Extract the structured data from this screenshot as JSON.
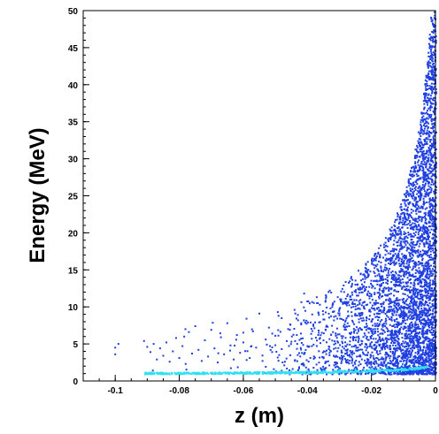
{
  "chart_data": {
    "type": "scatter",
    "xlabel": "z (m)",
    "ylabel": "Energy (MeV)",
    "xlim": [
      -0.11,
      0.0
    ],
    "ylim": [
      0,
      50
    ],
    "x_ticks": [
      -0.1,
      -0.08,
      -0.06,
      -0.04,
      -0.02,
      0
    ],
    "x_tick_labels": [
      "-0.1",
      "-0.08",
      "-0.06",
      "-0.04",
      "-0.02",
      "0"
    ],
    "y_ticks": [
      0,
      5,
      10,
      15,
      20,
      25,
      30,
      35,
      40,
      45,
      50
    ],
    "y_tick_labels": [
      "0",
      "5",
      "10",
      "15",
      "20",
      "25",
      "30",
      "35",
      "40",
      "45",
      "50"
    ],
    "grid": false,
    "legend": "none",
    "series": [
      {
        "color": "#1f3fe0",
        "points": [
          [
            -0.1,
            4.5
          ],
          [
            -0.1,
            3.6
          ],
          [
            -0.099,
            5.0
          ],
          [
            -0.091,
            5.4
          ],
          [
            -0.09,
            4.6
          ],
          [
            -0.089,
            3.9
          ],
          [
            -0.088,
            5.0
          ],
          [
            -0.087,
            2.9
          ],
          [
            -0.086,
            4.4
          ],
          [
            -0.085,
            3.4
          ],
          [
            -0.084,
            5.2
          ],
          [
            -0.083,
            2.6
          ],
          [
            -0.082,
            4.0
          ],
          [
            -0.081,
            5.8
          ],
          [
            -0.08,
            3.1
          ],
          [
            -0.079,
            4.7
          ],
          [
            -0.078,
            2.3
          ],
          [
            -0.077,
            6.6
          ],
          [
            -0.076,
            3.7
          ],
          [
            -0.075,
            7.4
          ],
          [
            -0.074,
            4.2
          ],
          [
            -0.073,
            2.7
          ],
          [
            -0.072,
            5.5
          ],
          [
            -0.071,
            3.3
          ],
          [
            -0.07,
            6.9
          ],
          [
            -0.069,
            4.4
          ],
          [
            -0.068,
            2.5
          ],
          [
            -0.067,
            5.9
          ],
          [
            -0.066,
            3.6
          ],
          [
            -0.065,
            7.8
          ],
          [
            -0.064,
            4.8
          ],
          [
            -0.063,
            2.9
          ],
          [
            -0.062,
            6.2
          ],
          [
            -0.061,
            3.8
          ],
          [
            -0.06,
            5.2
          ],
          [
            -0.059,
            8.4
          ],
          [
            -0.058,
            3.1
          ],
          [
            -0.057,
            6.7
          ],
          [
            -0.056,
            4.5
          ],
          [
            -0.055,
            9.1
          ],
          [
            -0.054,
            2.7
          ],
          [
            -0.053,
            5.6
          ],
          [
            -0.052,
            7.2
          ],
          [
            -0.051,
            3.9
          ],
          [
            -0.05,
            6.1
          ],
          [
            -0.049,
            8.8
          ],
          [
            -0.048,
            4.3
          ],
          [
            -0.047,
            2.6
          ],
          [
            -0.046,
            7.0
          ],
          [
            -0.045,
            5.3
          ],
          [
            -0.044,
            9.6
          ],
          [
            -0.043,
            3.5
          ],
          [
            -0.042,
            6.4
          ],
          [
            -0.041,
            11.8
          ],
          [
            -0.04,
            4.7
          ],
          [
            -0.039,
            7.9
          ],
          [
            -0.038,
            3.0
          ],
          [
            -0.037,
            10.5
          ],
          [
            -0.036,
            5.8
          ],
          [
            -0.035,
            8.3
          ],
          [
            -0.034,
            4.1
          ],
          [
            -0.033,
            12.2
          ],
          [
            -0.032,
            6.6
          ],
          [
            -0.031,
            3.4
          ],
          [
            -0.03,
            9.7
          ],
          [
            -0.029,
            5.1
          ],
          [
            -0.028,
            11.1
          ],
          [
            -0.027,
            7.4
          ],
          [
            -0.026,
            3.8
          ],
          [
            -0.025,
            13.0
          ],
          [
            -0.024,
            6.0
          ],
          [
            -0.023,
            9.2
          ],
          [
            -0.022,
            4.6
          ],
          [
            -0.021,
            14.3
          ],
          [
            -0.02,
            8.0
          ],
          [
            -0.019,
            11.7
          ],
          [
            -0.018,
            5.4
          ],
          [
            -0.017,
            16.0
          ],
          [
            -0.016,
            9.9
          ],
          [
            -0.015,
            13.6
          ],
          [
            -0.014,
            6.7
          ],
          [
            -0.013,
            17.5
          ],
          [
            -0.012,
            11.2
          ],
          [
            -0.011,
            19.4
          ],
          [
            -0.01,
            8.5
          ],
          [
            -0.009,
            14.8
          ],
          [
            -0.008,
            21.6
          ],
          [
            -0.007,
            10.3
          ],
          [
            -0.006,
            24.0
          ],
          [
            -0.005,
            16.9
          ],
          [
            -0.004,
            27.5
          ],
          [
            -0.003,
            20.8
          ],
          [
            -0.002,
            33.2
          ],
          [
            -0.0015,
            37.6
          ],
          [
            -0.001,
            42.3
          ],
          [
            -0.0005,
            47.2
          ],
          [
            -0.0003,
            49.0
          ]
        ]
      },
      {
        "color": "#30e0f0",
        "points": [
          [
            -0.09,
            1.0
          ],
          [
            -0.085,
            1.0
          ],
          [
            -0.08,
            1.0
          ],
          [
            -0.075,
            1.0
          ],
          [
            -0.07,
            1.1
          ],
          [
            -0.065,
            1.1
          ],
          [
            -0.06,
            1.1
          ],
          [
            -0.055,
            1.2
          ],
          [
            -0.05,
            1.2
          ],
          [
            -0.045,
            1.3
          ],
          [
            -0.04,
            1.4
          ],
          [
            -0.035,
            1.4
          ],
          [
            -0.03,
            1.5
          ],
          [
            -0.025,
            1.6
          ],
          [
            -0.02,
            1.7
          ],
          [
            -0.015,
            1.9
          ],
          [
            -0.01,
            2.2
          ]
        ]
      }
    ]
  }
}
